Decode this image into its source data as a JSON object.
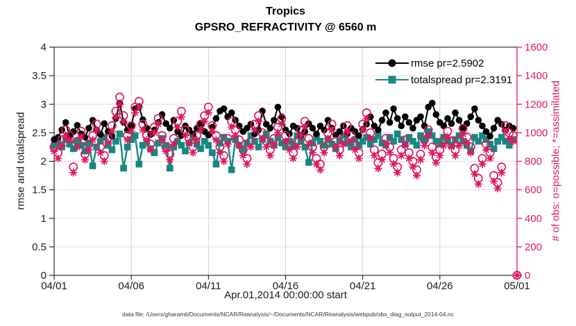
{
  "figure": {
    "caption": "data file: /Users/gharamti/Documents/NCAR/Reanalysis/~/Documents/NCAR/Reanalysis/webpub/obs_diag_output_2014-04.nc"
  },
  "colors": {
    "rmse": "#000000",
    "totalspread": "#178782",
    "obs": "#DE1A5F",
    "grid_horizontal": "#F4D6DE",
    "grid_vertical": "#D2D2D2",
    "axis_left": "#000000",
    "axis_right": "#DE1A5F",
    "tick_label_left": "#1a1a1a",
    "tick_label_right": "#DE1A5F"
  },
  "chart_data": {
    "type": "line",
    "title": "Tropics",
    "subtitle": "GPSRO_REFRACTIVITY @ 6560 m",
    "xlabel": "Apr.01,2014 00:00:00 start",
    "ylabel_left": "rmse and totalspread",
    "ylabel_right": "# of obs: o=possible; *=assimilated",
    "x_tick_labels": [
      "04/01",
      "04/06",
      "04/11",
      "04/16",
      "04/21",
      "04/26",
      "05/01"
    ],
    "x_tick_days": [
      0,
      5,
      10,
      15,
      20,
      25,
      30
    ],
    "x_range_days": [
      0,
      30
    ],
    "points_per_day": 4,
    "ylim_left": [
      0,
      4
    ],
    "yticks_left": [
      0,
      0.5,
      1,
      1.5,
      2,
      2.5,
      3,
      3.5,
      4
    ],
    "ylim_right": [
      0,
      1600
    ],
    "yticks_right": [
      0,
      200,
      400,
      600,
      800,
      1000,
      1200,
      1400,
      1600
    ],
    "grid": true,
    "legend_position": "top-right-inside",
    "series": [
      {
        "id": "rmse",
        "label": "rmse pr=2.5902",
        "axis": "left",
        "marker": "filled-circle",
        "line": true,
        "values": [
          2.38,
          2.42,
          2.55,
          2.68,
          2.45,
          2.52,
          2.63,
          2.48,
          2.42,
          2.58,
          2.72,
          2.55,
          2.47,
          2.66,
          2.52,
          2.44,
          2.75,
          3.02,
          2.68,
          2.55,
          2.62,
          2.92,
          2.96,
          2.73,
          2.58,
          2.47,
          2.55,
          2.68,
          2.82,
          2.66,
          2.58,
          2.72,
          2.52,
          2.45,
          2.62,
          2.55,
          2.48,
          2.58,
          2.66,
          2.52,
          2.46,
          2.6,
          2.75,
          2.88,
          2.92,
          2.78,
          2.85,
          2.72,
          2.62,
          2.52,
          2.58,
          2.65,
          2.48,
          2.55,
          2.88,
          2.65,
          2.58,
          2.72,
          2.95,
          2.78,
          2.55,
          2.48,
          2.62,
          2.58,
          2.45,
          2.52,
          2.66,
          2.58,
          2.48,
          2.62,
          2.55,
          2.72,
          2.58,
          2.46,
          2.52,
          2.62,
          2.48,
          2.58,
          2.52,
          2.45,
          2.56,
          2.65,
          2.78,
          2.62,
          2.55,
          2.72,
          2.85,
          2.68,
          2.92,
          2.75,
          2.62,
          2.78,
          2.68,
          2.58,
          2.72,
          2.78,
          2.62,
          2.95,
          3.02,
          2.82,
          2.68,
          2.62,
          2.75,
          2.66,
          2.85,
          2.72,
          2.58,
          2.66,
          2.78,
          2.92,
          2.72,
          2.62,
          2.52,
          2.44,
          2.58,
          2.72,
          2.65,
          2.55,
          2.62,
          2.58
        ]
      },
      {
        "id": "totalspread",
        "label": "totalspread pr=2.3191",
        "axis": "left",
        "marker": "filled-square",
        "line": true,
        "values": [
          2.28,
          2.32,
          2.25,
          2.38,
          2.3,
          2.22,
          2.35,
          2.28,
          2.18,
          2.32,
          1.92,
          2.25,
          2.35,
          2.42,
          2.28,
          2.2,
          2.35,
          2.48,
          1.88,
          2.25,
          2.38,
          2.45,
          1.95,
          2.28,
          2.35,
          2.22,
          2.15,
          2.32,
          2.4,
          2.28,
          1.88,
          2.25,
          2.35,
          2.28,
          2.18,
          2.32,
          2.42,
          2.3,
          2.22,
          2.35,
          2.28,
          2.15,
          1.95,
          2.32,
          2.42,
          2.35,
          1.85,
          2.38,
          2.28,
          2.2,
          2.32,
          2.45,
          2.35,
          2.25,
          2.38,
          2.48,
          2.35,
          2.28,
          2.42,
          2.32,
          2.25,
          2.35,
          2.28,
          2.45,
          2.35,
          2.25,
          1.98,
          2.32,
          2.42,
          2.35,
          2.28,
          2.38,
          2.3,
          2.22,
          2.35,
          2.45,
          2.32,
          2.25,
          2.38,
          2.28,
          2.35,
          2.42,
          2.3,
          2.38,
          2.45,
          2.32,
          2.28,
          2.42,
          2.35,
          2.48,
          2.38,
          2.3,
          2.42,
          2.35,
          2.28,
          2.45,
          2.38,
          2.52,
          2.45,
          2.35,
          2.3,
          2.42,
          2.35,
          2.28,
          2.38,
          2.45,
          2.35,
          2.28,
          2.18,
          2.42,
          2.35,
          2.45,
          2.38,
          2.3,
          2.22,
          2.35,
          2.42,
          2.35,
          2.28,
          2.38
        ]
      },
      {
        "id": "obs_possible",
        "label": "o=possible",
        "axis": "right",
        "marker": "open-circle",
        "line": false,
        "values": [
          900,
          860,
          950,
          1020,
          980,
          760,
          940,
          1010,
          850,
          920,
          980,
          1060,
          900,
          840,
          960,
          1050,
          1150,
          1250,
          1120,
          980,
          1050,
          1180,
          1220,
          1060,
          980,
          920,
          1040,
          1100,
          980,
          900,
          850,
          960,
          1080,
          1150,
          1020,
          960,
          900,
          980,
          1060,
          1120,
          1180,
          1050,
          980,
          900,
          840,
          960,
          1080,
          1020,
          950,
          880,
          820,
          940,
          1060,
          1120,
          1000,
          940,
          880,
          960,
          1040,
          1100,
          980,
          920,
          860,
          940,
          1020,
          1080,
          960,
          900,
          820,
          780,
          900,
          1000,
          1060,
          940,
          880,
          960,
          1050,
          980,
          920,
          860,
          1060,
          1140,
          1000,
          880,
          790,
          850,
          960,
          900,
          820,
          760,
          880,
          950,
          860,
          800,
          740,
          850,
          950,
          1020,
          900,
          830,
          880,
          950,
          1010,
          940,
          880,
          950,
          1030,
          970,
          900,
          750,
          680,
          820,
          920,
          860,
          700,
          650,
          760,
          1050,
          1000,
          980,
          0
        ]
      },
      {
        "id": "obs_assimilated",
        "label": "*=assimilated",
        "axis": "right",
        "marker": "asterisk",
        "line": false,
        "values": [
          870,
          820,
          910,
          980,
          950,
          720,
          900,
          970,
          810,
          880,
          950,
          1020,
          860,
          800,
          930,
          1010,
          1110,
          1200,
          1080,
          950,
          1010,
          1140,
          1180,
          1020,
          950,
          880,
          1000,
          1060,
          950,
          870,
          810,
          920,
          1040,
          1110,
          980,
          930,
          860,
          950,
          1020,
          1080,
          1140,
          1010,
          950,
          860,
          800,
          920,
          1040,
          980,
          910,
          840,
          780,
          900,
          1020,
          1080,
          960,
          900,
          840,
          920,
          1000,
          1060,
          940,
          880,
          820,
          900,
          980,
          1040,
          920,
          860,
          780,
          740,
          860,
          960,
          1020,
          900,
          840,
          920,
          1010,
          940,
          880,
          820,
          1020,
          1100,
          960,
          840,
          750,
          810,
          920,
          860,
          780,
          720,
          840,
          910,
          820,
          760,
          700,
          810,
          910,
          980,
          860,
          790,
          840,
          910,
          970,
          900,
          840,
          910,
          990,
          930,
          860,
          710,
          640,
          780,
          880,
          820,
          660,
          610,
          720,
          1010,
          960,
          940,
          0
        ]
      }
    ]
  }
}
